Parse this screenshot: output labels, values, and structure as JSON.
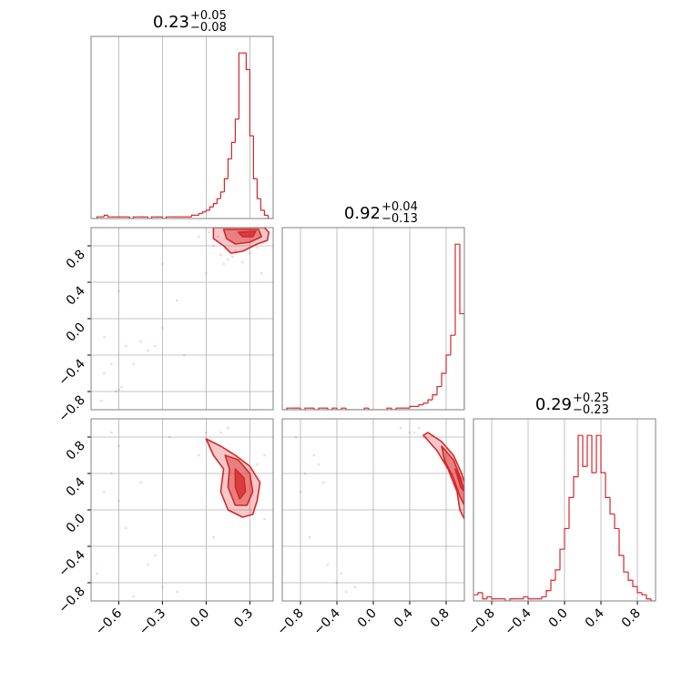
{
  "chart_data": [
    {
      "type": "hist",
      "color": "#d62728",
      "title": {
        "value": "0.23",
        "plus": "+0.05",
        "minus": "−0.08"
      },
      "xlim": [
        -0.79,
        0.46
      ],
      "xticks": [
        -0.6,
        -0.3,
        0,
        0.3
      ],
      "xlabels": false,
      "ylim": [
        0,
        110
      ],
      "bins": [
        -0.75,
        -0.725,
        -0.7,
        -0.675,
        -0.65,
        -0.625,
        -0.6,
        -0.575,
        -0.55,
        -0.525,
        -0.5,
        -0.475,
        -0.45,
        -0.425,
        -0.4,
        -0.375,
        -0.35,
        -0.325,
        -0.3,
        -0.275,
        -0.25,
        -0.225,
        -0.2,
        -0.175,
        -0.15,
        -0.125,
        -0.1,
        -0.075,
        -0.05,
        -0.025,
        0,
        0.025,
        0.05,
        0.075,
        0.1,
        0.125,
        0.15,
        0.175,
        0.2,
        0.225,
        0.25,
        0.275,
        0.3,
        0.325,
        0.35,
        0.375,
        0.4,
        0.425,
        0.45
      ],
      "counts": [
        1,
        1,
        2,
        1,
        1,
        1,
        1,
        1,
        1,
        0,
        1,
        1,
        1,
        1,
        0,
        1,
        1,
        1,
        0,
        1,
        1,
        1,
        1,
        1,
        1,
        1,
        2,
        2,
        3,
        4,
        5,
        7,
        9,
        12,
        16,
        24,
        36,
        46,
        60,
        100,
        100,
        90,
        50,
        24,
        12,
        5,
        2,
        0
      ]
    },
    {
      "type": "scatter",
      "color": "#d62728",
      "xlim": [
        -0.79,
        0.46
      ],
      "xticks": [
        -0.6,
        -0.3,
        0,
        0.3
      ],
      "xlabels": false,
      "ylim": [
        -1,
        1
      ],
      "yticks": [
        {
          "value": -0.8,
          "label": "−0.8"
        },
        {
          "value": -0.4,
          "label": "−0.4"
        },
        {
          "value": 0,
          "label": "0.0"
        },
        0.4,
        0.8
      ],
      "ylabels": true,
      "points": {
        "x": [
          0.1,
          0.15,
          0.2,
          0.05,
          0.3,
          0.35,
          0.4,
          0.08,
          0.12,
          0.25,
          0.18,
          0.02,
          -0.05,
          -0.7,
          -0.65,
          -0.6,
          -0.62,
          -0.58,
          -0.55,
          -0.7,
          -0.45,
          -0.4,
          -0.35,
          -0.3,
          -0.2,
          -0.6,
          -0.5,
          -0.72,
          0.0,
          0.38,
          -0.15,
          -0.3
        ],
        "y": [
          0.7,
          0.65,
          0.75,
          0.8,
          0.72,
          0.78,
          0.85,
          0.9,
          0.6,
          0.62,
          0.68,
          0.95,
          0.9,
          -0.6,
          -0.5,
          -0.78,
          -0.8,
          -0.75,
          -0.3,
          -0.2,
          -0.25,
          -0.35,
          -0.3,
          -0.1,
          0.2,
          0.3,
          -0.5,
          -0.9,
          0.5,
          0.5,
          -0.4,
          0.6
        ]
      },
      "contours": [
        {
          "x": [
            0.05,
            0.05,
            0.12,
            0.17,
            0.25,
            0.35,
            0.42,
            0.43,
            0.4
          ],
          "y": [
            1.0,
            0.88,
            0.8,
            0.72,
            0.74,
            0.82,
            0.86,
            0.95,
            1.0
          ]
        },
        {
          "x": [
            0.12,
            0.14,
            0.2,
            0.3,
            0.38,
            0.36
          ],
          "y": [
            0.98,
            0.88,
            0.82,
            0.84,
            0.9,
            0.98
          ]
        },
        {
          "x": [
            0.22,
            0.25,
            0.32,
            0.34
          ],
          "y": [
            0.95,
            0.9,
            0.9,
            0.96
          ]
        }
      ]
    },
    {
      "type": "hist",
      "color": "#d62728",
      "title": {
        "value": "0.92",
        "plus": "+0.04",
        "minus": "−0.13"
      },
      "xlim": [
        -1,
        1
      ],
      "xticks": [
        -0.8,
        -0.4,
        0,
        0.4,
        0.8
      ],
      "xlabels": false,
      "ylim": [
        0,
        110
      ],
      "bins": [
        -1,
        -0.95,
        -0.9,
        -0.85,
        -0.8,
        -0.75,
        -0.7,
        -0.65,
        -0.6,
        -0.55,
        -0.5,
        -0.45,
        -0.4,
        -0.35,
        -0.3,
        -0.25,
        -0.2,
        -0.15,
        -0.1,
        -0.05,
        0,
        0.05,
        0.1,
        0.15,
        0.2,
        0.25,
        0.3,
        0.35,
        0.4,
        0.45,
        0.5,
        0.55,
        0.6,
        0.65,
        0.7,
        0.75,
        0.8,
        0.85,
        0.9,
        0.95,
        1
      ],
      "counts": [
        0,
        1,
        1,
        1,
        0,
        1,
        1,
        0,
        1,
        1,
        0,
        1,
        0,
        1,
        0,
        0,
        0,
        0,
        1,
        0,
        0,
        0,
        0,
        1,
        0,
        1,
        1,
        1,
        2,
        2,
        3,
        4,
        6,
        9,
        14,
        22,
        33,
        45,
        100,
        58
      ]
    },
    {
      "type": "scatter",
      "color": "#d62728",
      "xlim": [
        -0.79,
        0.46
      ],
      "xticks": [
        {
          "value": -0.6,
          "label": "−0.6"
        },
        {
          "value": -0.3,
          "label": "−0.3"
        },
        {
          "value": 0,
          "label": "0.0"
        },
        0.3
      ],
      "xlabels": true,
      "ylim": [
        -1,
        1
      ],
      "yticks": [
        {
          "value": -0.8,
          "label": "−0.8"
        },
        {
          "value": -0.4,
          "label": "−0.4"
        },
        {
          "value": 0,
          "label": "0.0"
        },
        0.4,
        0.8
      ],
      "ylabels": true,
      "points": {
        "x": [
          0.0,
          -0.05,
          0.1,
          0.15,
          0.35,
          0.4,
          -0.65,
          -0.7,
          -0.6,
          -0.55,
          -0.4,
          -0.3,
          -0.2,
          -0.5,
          -0.35,
          -0.25,
          -0.65,
          -0.6,
          0.4,
          0.05,
          -0.75,
          -0.45
        ],
        "y": [
          0.85,
          0.6,
          0.85,
          0.9,
          0.5,
          0.6,
          0.4,
          0.2,
          0.1,
          -0.2,
          -0.6,
          -0.85,
          -0.9,
          -0.95,
          -0.5,
          0.8,
          0.85,
          0.7,
          -0.1,
          -0.3,
          -0.7,
          0.3
        ]
      },
      "contours": [
        {
          "x": [
            0.0,
            0.1,
            0.2,
            0.3,
            0.37,
            0.35,
            0.32,
            0.25,
            0.15,
            0.1,
            0.12,
            0.05
          ],
          "y": [
            0.78,
            0.7,
            0.6,
            0.48,
            0.3,
            0.1,
            -0.05,
            -0.08,
            0.0,
            0.2,
            0.45,
            0.6
          ]
        },
        {
          "x": [
            0.13,
            0.22,
            0.3,
            0.32,
            0.28,
            0.2,
            0.15,
            0.16
          ],
          "y": [
            0.6,
            0.55,
            0.4,
            0.2,
            0.05,
            0.05,
            0.25,
            0.45
          ]
        },
        {
          "x": [
            0.2,
            0.26,
            0.27,
            0.23,
            0.2
          ],
          "y": [
            0.45,
            0.35,
            0.2,
            0.12,
            0.25
          ]
        }
      ]
    },
    {
      "type": "scatter",
      "color": "#d62728",
      "xlim": [
        -1,
        1
      ],
      "xticks": [
        {
          "value": -0.8,
          "label": "−0.8"
        },
        {
          "value": -0.4,
          "label": "−0.4"
        },
        {
          "value": 0,
          "label": "0.0"
        },
        0.4,
        0.8
      ],
      "xlabels": true,
      "ylim": [
        -1,
        1
      ],
      "yticks": [
        -0.8,
        -0.4,
        0,
        0.4,
        0.8
      ],
      "ylabels": false,
      "points": {
        "x": [
          0.4,
          0.5,
          0.55,
          -0.8,
          -0.75,
          -0.6,
          -0.65,
          -0.5,
          -0.4,
          -0.35,
          -0.3,
          -0.7,
          -0.85,
          0.45,
          -0.55,
          -0.2,
          0.3
        ],
        "y": [
          0.85,
          0.9,
          0.8,
          0.2,
          0.4,
          0.5,
          0.6,
          -0.6,
          -0.8,
          -0.7,
          -0.9,
          -0.3,
          0.8,
          0.85,
          0.3,
          -0.85,
          0.9
        ]
      },
      "contours": [
        {
          "x": [
            0.6,
            0.75,
            0.88,
            0.97,
            1.0,
            1.0,
            0.95,
            0.92,
            0.82,
            0.7,
            0.55
          ],
          "y": [
            0.85,
            0.75,
            0.6,
            0.4,
            0.3,
            -0.1,
            0.0,
            0.2,
            0.45,
            0.65,
            0.82
          ]
        },
        {
          "x": [
            0.75,
            0.88,
            0.96,
            1.0,
            1.0,
            0.95,
            0.88,
            0.78
          ],
          "y": [
            0.7,
            0.55,
            0.35,
            0.2,
            0.05,
            0.15,
            0.35,
            0.55
          ]
        },
        {
          "x": [
            0.9,
            0.97,
            1.0,
            0.96
          ],
          "y": [
            0.45,
            0.3,
            0.2,
            0.25
          ]
        }
      ]
    },
    {
      "type": "hist",
      "color": "#d62728",
      "title": {
        "value": "0.29",
        "plus": "+0.25",
        "minus": "−0.23"
      },
      "xlim": [
        -1,
        1
      ],
      "xticks": [
        {
          "value": -0.8,
          "label": "−0.8"
        },
        {
          "value": -0.4,
          "label": "−0.4"
        },
        {
          "value": 0,
          "label": "0.0"
        },
        0.4,
        0.8
      ],
      "xlabels": true,
      "ylim": [
        0,
        88
      ],
      "bins": [
        -1,
        -0.95,
        -0.9,
        -0.85,
        -0.8,
        -0.75,
        -0.7,
        -0.65,
        -0.6,
        -0.55,
        -0.5,
        -0.45,
        -0.4,
        -0.35,
        -0.3,
        -0.25,
        -0.2,
        -0.15,
        -0.1,
        -0.05,
        0,
        0.05,
        0.1,
        0.15,
        0.2,
        0.25,
        0.3,
        0.35,
        0.4,
        0.45,
        0.5,
        0.55,
        0.6,
        0.65,
        0.7,
        0.75,
        0.8,
        0.85,
        0.9,
        0.95,
        1
      ],
      "counts": [
        3,
        4,
        1,
        2,
        1,
        1,
        1,
        0,
        1,
        1,
        1,
        2,
        1,
        1,
        1,
        2,
        5,
        10,
        15,
        25,
        35,
        50,
        60,
        80,
        65,
        80,
        62,
        80,
        62,
        50,
        42,
        35,
        22,
        14,
        10,
        7,
        4,
        3,
        1,
        0
      ]
    }
  ]
}
